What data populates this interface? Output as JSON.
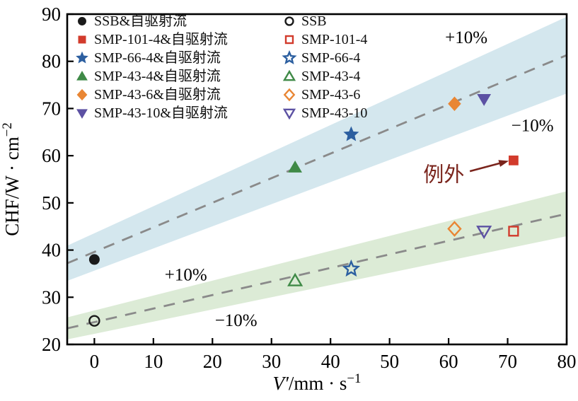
{
  "figure": {
    "background": "#ffffff",
    "frame_color": "#000000",
    "axis": {
      "xlabel_var": "V′",
      "xlabel_rest": "/mm · s",
      "xlabel_sup": "−1",
      "ylabel_main": "CHF/W · cm",
      "ylabel_sup": "−2"
    }
  },
  "legend": {
    "filled_items": [
      {
        "label": "SSB&自驱射流",
        "marker": "circle",
        "color": "#1a1a1a"
      },
      {
        "label": "SMP-101-4&自驱射流",
        "marker": "square",
        "color": "#d23b2c"
      },
      {
        "label": "SMP-66-4&自驱射流",
        "marker": "star",
        "color": "#2c5fa0"
      },
      {
        "label": "SMP-43-4&自驱射流",
        "marker": "triangle-up",
        "color": "#3f8a47"
      },
      {
        "label": "SMP-43-6&自驱射流",
        "marker": "diamond",
        "color": "#e98634"
      },
      {
        "label": "SMP-43-10&自驱射流",
        "marker": "triangle-down",
        "color": "#5c51a3"
      }
    ],
    "open_items": [
      {
        "label": "SSB",
        "marker": "circle",
        "color": "#1a1a1a"
      },
      {
        "label": "SMP-101-4",
        "marker": "square",
        "color": "#d23b2c"
      },
      {
        "label": "SMP-66-4",
        "marker": "star",
        "color": "#2c5fa0"
      },
      {
        "label": "SMP-43-4",
        "marker": "triangle-up",
        "color": "#3f8a47"
      },
      {
        "label": "SMP-43-6",
        "marker": "diamond",
        "color": "#e98634"
      },
      {
        "label": "SMP-43-10",
        "marker": "triangle-down",
        "color": "#5c51a3"
      }
    ]
  },
  "chart_data": {
    "type": "scatter",
    "title": "",
    "xlabel": "V′/mm·s⁻¹",
    "ylabel": "CHF/W·cm⁻²",
    "xlim": [
      -4.6,
      80
    ],
    "ylim": [
      20,
      90
    ],
    "x_ticks": [
      0,
      10,
      20,
      30,
      40,
      50,
      60,
      70,
      80
    ],
    "y_ticks": [
      20,
      30,
      40,
      50,
      60,
      70,
      80,
      90
    ],
    "grid": false,
    "legend_position": "top-left-inside",
    "series": [
      {
        "name": "SSB&自驱射流",
        "marker": "circle",
        "filled": true,
        "color": "#1a1a1a",
        "points": [
          [
            0,
            38
          ]
        ]
      },
      {
        "name": "SMP-101-4&自驱射流",
        "marker": "square",
        "filled": true,
        "color": "#d23b2c",
        "points": [
          [
            71,
            59
          ]
        ]
      },
      {
        "name": "SMP-66-4&自驱射流",
        "marker": "star",
        "filled": true,
        "color": "#2c5fa0",
        "points": [
          [
            43.5,
            64.5
          ]
        ]
      },
      {
        "name": "SMP-43-4&自驱射流",
        "marker": "triangle-up",
        "filled": true,
        "color": "#3f8a47",
        "points": [
          [
            34,
            57.5
          ]
        ]
      },
      {
        "name": "SMP-43-6&自驱射流",
        "marker": "diamond",
        "filled": true,
        "color": "#e98634",
        "points": [
          [
            61,
            71
          ]
        ]
      },
      {
        "name": "SMP-43-10&自驱射流",
        "marker": "triangle-down",
        "filled": true,
        "color": "#5c51a3",
        "points": [
          [
            66,
            72
          ]
        ]
      },
      {
        "name": "SSB",
        "marker": "circle",
        "filled": false,
        "color": "#1a1a1a",
        "points": [
          [
            0,
            25
          ]
        ]
      },
      {
        "name": "SMP-101-4",
        "marker": "square",
        "filled": false,
        "color": "#d23b2c",
        "points": [
          [
            71,
            44
          ]
        ]
      },
      {
        "name": "SMP-66-4",
        "marker": "star",
        "filled": false,
        "color": "#2c5fa0",
        "points": [
          [
            43.5,
            36
          ]
        ]
      },
      {
        "name": "SMP-43-4",
        "marker": "triangle-up",
        "filled": false,
        "color": "#3f8a47",
        "points": [
          [
            34,
            33.5
          ]
        ]
      },
      {
        "name": "SMP-43-6",
        "marker": "diamond",
        "filled": false,
        "color": "#e98634",
        "points": [
          [
            61,
            44.5
          ]
        ]
      },
      {
        "name": "SMP-43-10",
        "marker": "triangle-down",
        "filled": false,
        "color": "#5c51a3",
        "points": [
          [
            66,
            44
          ]
        ]
      }
    ],
    "trend_lines": [
      {
        "name": "upper-fit",
        "x0": -4.6,
        "y0": 37.2,
        "x1": 80,
        "y1": 81.3,
        "band_pct": 10,
        "band_color": "#d4e7ee",
        "line_color": "#8a8a8a"
      },
      {
        "name": "lower-fit",
        "x0": -4.6,
        "y0": 23.4,
        "x1": 80,
        "y1": 47.7,
        "band_pct": 10,
        "band_color": "#dcebd6",
        "line_color": "#8a8a8a"
      }
    ],
    "annotations": [
      {
        "id": "upper-plus10",
        "text": "+10%",
        "x": 63,
        "y": 85.2,
        "color": "#000000",
        "size": 25
      },
      {
        "id": "upper-minus10",
        "text": "−10%",
        "x": 74.2,
        "y": 66.5,
        "color": "#000000",
        "size": 25
      },
      {
        "id": "lower-plus10",
        "text": "+10%",
        "x": 15.5,
        "y": 34.9,
        "color": "#000000",
        "size": 25
      },
      {
        "id": "lower-minus10",
        "text": "−10%",
        "x": 24,
        "y": 25.2,
        "color": "#000000",
        "size": 25
      },
      {
        "id": "exception",
        "text": "例外",
        "x": 59.2,
        "y": 56.1,
        "color": "#7a241c",
        "size": 29,
        "arrow_from": [
          63.6,
          56.7
        ],
        "arrow_to": [
          70.2,
          58.9
        ]
      }
    ]
  }
}
